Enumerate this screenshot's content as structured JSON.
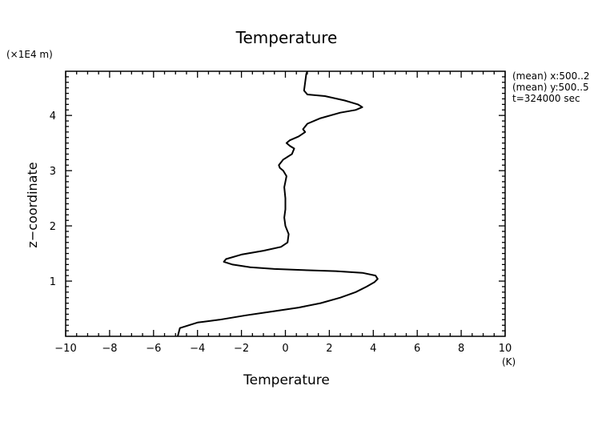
{
  "chart_data": {
    "type": "line",
    "title": "Temperature",
    "xlabel": "Temperature",
    "xunit": "(K)",
    "ylabel": "z−coordinate",
    "yunit": "(×1E4 m)",
    "xlim": [
      -10,
      10
    ],
    "ylim": [
      0,
      4.8
    ],
    "xticks": [
      -10,
      -8,
      -6,
      -4,
      -2,
      0,
      2,
      4,
      6,
      8,
      10
    ],
    "yticks": [
      1,
      2,
      3,
      4
    ],
    "grid": false,
    "annotations": [
      "(mean) x:500..2",
      "(mean) y:500..5",
      "t=324000 sec"
    ],
    "series": [
      {
        "x": [
          -4.9,
          -4.8,
          -4.0,
          -3.0,
          -1.8,
          -0.6,
          0.6,
          1.6,
          2.5,
          3.2,
          3.7,
          4.05,
          4.2,
          4.1,
          3.5,
          2.3,
          0.8,
          -0.5,
          -1.6,
          -2.4,
          -2.8,
          -2.7,
          -2.0,
          -1.0,
          -0.2,
          0.1,
          0.15,
          0.0,
          -0.05,
          0.0,
          0.0,
          -0.05,
          0.0,
          0.05,
          -0.1,
          -0.25,
          -0.3,
          -0.1,
          0.3,
          0.4,
          0.2,
          0.05,
          0.2,
          0.6,
          0.9,
          0.8,
          1.0,
          1.6,
          2.5,
          3.2,
          3.5,
          3.3,
          2.7,
          1.8,
          1.0,
          0.85,
          0.9,
          0.95,
          1.0
        ],
        "y": [
          0.0,
          0.15,
          0.25,
          0.3,
          0.38,
          0.45,
          0.52,
          0.6,
          0.7,
          0.8,
          0.9,
          0.98,
          1.04,
          1.1,
          1.15,
          1.18,
          1.2,
          1.22,
          1.25,
          1.3,
          1.35,
          1.4,
          1.48,
          1.55,
          1.62,
          1.7,
          1.85,
          2.0,
          2.15,
          2.3,
          2.5,
          2.7,
          2.8,
          2.9,
          3.0,
          3.05,
          3.1,
          3.2,
          3.3,
          3.4,
          3.45,
          3.5,
          3.55,
          3.62,
          3.7,
          3.75,
          3.85,
          3.95,
          4.05,
          4.1,
          4.15,
          4.2,
          4.27,
          4.35,
          4.38,
          4.45,
          4.6,
          4.75,
          4.8
        ]
      }
    ]
  }
}
